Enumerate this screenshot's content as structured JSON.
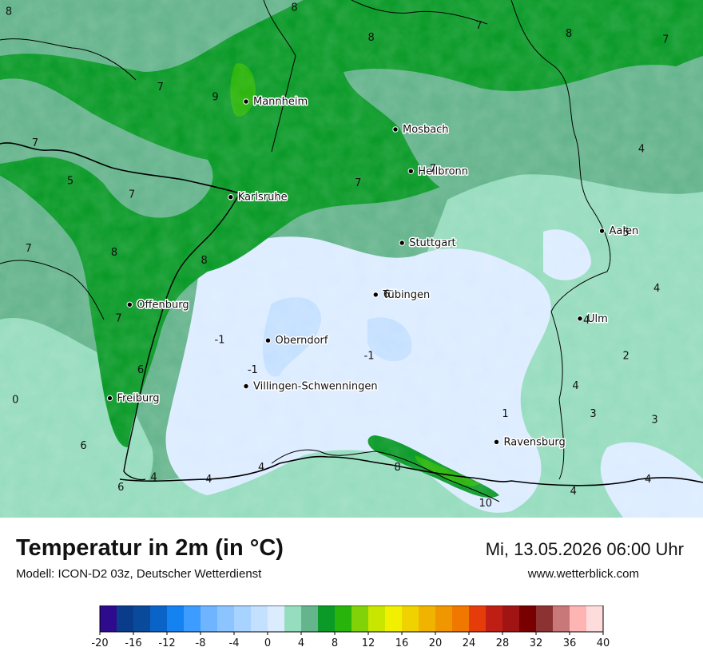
{
  "title": "Temperatur in 2m (in °C)",
  "model": "Modell: ICON-D2 03z, Deutscher Wetterdienst",
  "datetime": "Mi, 13.05.2026 06:00 Uhr",
  "site": "www.wetterblick.com",
  "cities": [
    {
      "name": "Mannheim",
      "lon": 8.47,
      "lat": 49.49
    },
    {
      "name": "Mosbach",
      "lon": 9.15,
      "lat": 49.35
    },
    {
      "name": "Heilbronn",
      "lon": 9.22,
      "lat": 49.14
    },
    {
      "name": "Karlsruhe",
      "lon": 8.4,
      "lat": 49.01
    },
    {
      "name": "Aalen",
      "lon": 10.09,
      "lat": 48.84
    },
    {
      "name": "Stuttgart",
      "lon": 9.18,
      "lat": 48.78
    },
    {
      "name": "Tübingen",
      "lon": 9.06,
      "lat": 48.52
    },
    {
      "name": "Offenburg",
      "lon": 7.94,
      "lat": 48.47
    },
    {
      "name": "Ulm",
      "lon": 9.99,
      "lat": 48.4
    },
    {
      "name": "Oberndorf",
      "lon": 8.57,
      "lat": 48.29
    },
    {
      "name": "Villingen-Schwenningen",
      "lon": 8.47,
      "lat": 48.06
    },
    {
      "name": "Freiburg",
      "lon": 7.85,
      "lat": 48.0
    },
    {
      "name": "Ravensburg",
      "lon": 9.61,
      "lat": 47.78
    }
  ],
  "isotherm_labels": [
    {
      "text": "8",
      "lon": 7.39,
      "lat": 49.94
    },
    {
      "text": "8",
      "lon": 8.69,
      "lat": 49.96
    },
    {
      "text": "7",
      "lon": 9.53,
      "lat": 49.87
    },
    {
      "text": "8",
      "lon": 9.04,
      "lat": 49.81
    },
    {
      "text": "8",
      "lon": 9.94,
      "lat": 49.83
    },
    {
      "text": "7",
      "lon": 10.38,
      "lat": 49.8
    },
    {
      "text": "7",
      "lon": 8.08,
      "lat": 49.56
    },
    {
      "text": "9",
      "lon": 8.33,
      "lat": 49.51
    },
    {
      "text": "7",
      "lon": 7.51,
      "lat": 49.28
    },
    {
      "text": "7",
      "lon": 9.32,
      "lat": 49.15
    },
    {
      "text": "4",
      "lon": 10.27,
      "lat": 49.25
    },
    {
      "text": "5",
      "lon": 7.67,
      "lat": 49.09
    },
    {
      "text": "7",
      "lon": 7.95,
      "lat": 49.02
    },
    {
      "text": "7",
      "lon": 8.98,
      "lat": 49.08
    },
    {
      "text": "5",
      "lon": 10.2,
      "lat": 48.83
    },
    {
      "text": "7",
      "lon": 7.48,
      "lat": 48.75
    },
    {
      "text": "8",
      "lon": 7.87,
      "lat": 48.73
    },
    {
      "text": "8",
      "lon": 8.28,
      "lat": 48.69
    },
    {
      "text": "4",
      "lon": 10.34,
      "lat": 48.55
    },
    {
      "text": "6",
      "lon": 9.11,
      "lat": 48.52
    },
    {
      "text": "7",
      "lon": 7.89,
      "lat": 48.4
    },
    {
      "text": "4",
      "lon": 10.02,
      "lat": 48.39
    },
    {
      "text": "-1",
      "lon": 8.35,
      "lat": 48.29
    },
    {
      "text": "-1",
      "lon": 9.03,
      "lat": 48.21
    },
    {
      "text": "2",
      "lon": 10.2,
      "lat": 48.21
    },
    {
      "text": "-1",
      "lon": 8.5,
      "lat": 48.14
    },
    {
      "text": "6",
      "lon": 7.99,
      "lat": 48.14
    },
    {
      "text": "4",
      "lon": 9.97,
      "lat": 48.06
    },
    {
      "text": "0",
      "lon": 7.42,
      "lat": 47.99
    },
    {
      "text": "1",
      "lon": 9.65,
      "lat": 47.92
    },
    {
      "text": "3",
      "lon": 10.05,
      "lat": 47.92
    },
    {
      "text": "3",
      "lon": 10.33,
      "lat": 47.89
    },
    {
      "text": "6",
      "lon": 7.73,
      "lat": 47.76
    },
    {
      "text": "8",
      "lon": 9.16,
      "lat": 47.65
    },
    {
      "text": "4",
      "lon": 8.54,
      "lat": 47.65
    },
    {
      "text": "4",
      "lon": 8.05,
      "lat": 47.6
    },
    {
      "text": "4",
      "lon": 8.3,
      "lat": 47.59
    },
    {
      "text": "4",
      "lon": 10.3,
      "lat": 47.59
    },
    {
      "text": "6",
      "lon": 7.9,
      "lat": 47.55
    },
    {
      "text": "4",
      "lon": 9.96,
      "lat": 47.53
    },
    {
      "text": "10",
      "lon": 9.56,
      "lat": 47.47
    }
  ],
  "legend": {
    "ticks": [
      "-20",
      "-16",
      "-12",
      "-8",
      "-4",
      "0",
      "4",
      "8",
      "12",
      "16",
      "20",
      "24",
      "28",
      "32",
      "36",
      "40"
    ],
    "colors": [
      "#2e0a8c",
      "#0a3c8c",
      "#0a4a9a",
      "#0a64c8",
      "#1482f0",
      "#3c9cff",
      "#6eb4ff",
      "#8cc4ff",
      "#a8d2ff",
      "#c4e0ff",
      "#dcecff",
      "#96dcbe",
      "#64b48c",
      "#0a9a28",
      "#28b40a",
      "#82d20a",
      "#c8e600",
      "#f0f000",
      "#f0d200",
      "#f0b400",
      "#f09600",
      "#f07800",
      "#e63c0a",
      "#be1e14",
      "#a01414",
      "#780000",
      "#8c3232",
      "#c87878",
      "#ffb4b4",
      "#ffdcdc"
    ]
  }
}
